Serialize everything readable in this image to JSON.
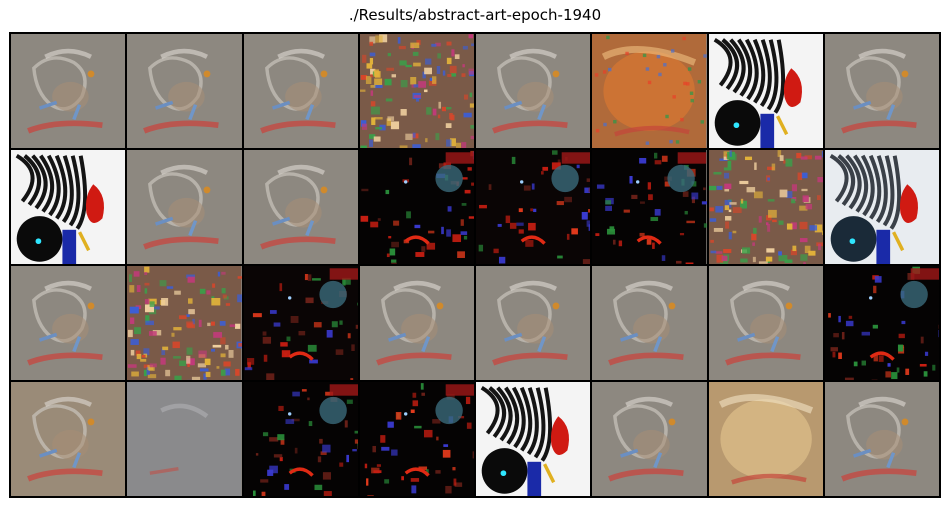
{
  "figure": {
    "title": "./Results/abstract-art-epoch-1940"
  },
  "grid": {
    "rows": 4,
    "cols": 8,
    "tiles": [
      [
        "gray-sketch",
        "gray-sketch",
        "gray-sketch",
        "colorful-noise",
        "gray-sketch",
        "warm-orange",
        "bw-zebra",
        "gray-sketch"
      ],
      [
        "bw-zebra",
        "gray-sketch",
        "gray-sketch",
        "dark-red",
        "dark-red-noise",
        "dark-red",
        "colorful-noise",
        "bw-zebra-soft"
      ],
      [
        "gray-sketch",
        "colorful-noise",
        "dark-red-noise",
        "gray-sketch",
        "gray-sketch",
        "gray-sketch",
        "gray-sketch",
        "dark-red"
      ],
      [
        "tan-sketch",
        "gray-plain",
        "dark-red",
        "dark-red",
        "bw-zebra",
        "gray-sketch",
        "warm-tan",
        "gray-sketch"
      ]
    ]
  },
  "palette": {
    "gray-sketch": "#8d8880",
    "gray-plain": "#8a8a8c",
    "tan-sketch": "#9a8b78",
    "warm-tan": "#b8996f",
    "warm-orange": "#b06a3a",
    "colorful-noise": "#7a5a48",
    "dark-red": "#050303",
    "dark-red-noise": "#0a0505",
    "bw-zebra": "#f4f4f4",
    "bw-zebra-soft": "#e8ecf0"
  }
}
